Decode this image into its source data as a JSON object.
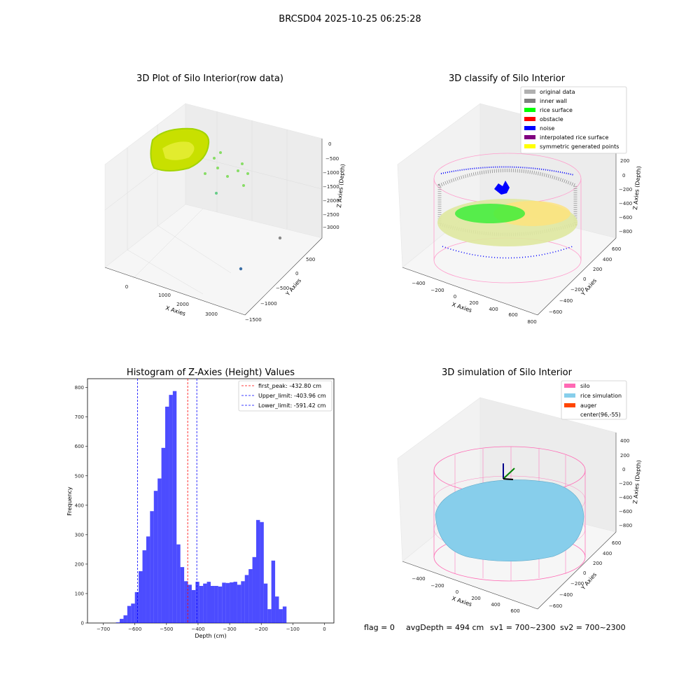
{
  "figure": {
    "suptitle": "BRCSD04 2025-10-25 06:25:28"
  },
  "panels": {
    "raw": {
      "title": "3D Plot of Silo Interior(row data)",
      "xlabel": "X Axies",
      "ylabel": "Y Axies",
      "zlabel": "Z Axies (Depth)",
      "xticks": [
        "0",
        "1000",
        "2000",
        "3000"
      ],
      "yticks": [
        "500",
        "0",
        "−500",
        "−1000",
        "−1500"
      ],
      "zticks": [
        "0",
        "−500",
        "−1000",
        "−1500",
        "−2000",
        "−2500",
        "−3000"
      ]
    },
    "classify": {
      "title": "3D classify of Silo Interior",
      "xlabel": "X Axies",
      "ylabel": "Y Axies",
      "zlabel": "Z Axies (Depth)",
      "xticks": [
        "−400",
        "−200",
        "0",
        "200",
        "400",
        "600",
        "800"
      ],
      "yticks": [
        "600",
        "400",
        "200",
        "0",
        "−200",
        "−400",
        "−600"
      ],
      "zticks": [
        "200",
        "0",
        "−200",
        "−400",
        "−600",
        "−800"
      ],
      "legend": [
        {
          "label": "original data",
          "color": "#b0b0b0"
        },
        {
          "label": "inner wall",
          "color": "#808080"
        },
        {
          "label": "rice surface",
          "color": "#00ff00"
        },
        {
          "label": "obstacle",
          "color": "#ff0000"
        },
        {
          "label": "noise",
          "color": "#0000ff"
        },
        {
          "label": "interpolated rice surface",
          "color": "#800080"
        },
        {
          "label": "symmetric generated points",
          "color": "#ffff00"
        }
      ]
    },
    "simulation": {
      "title": "3D simulation of Silo Interior",
      "xlabel": "X Axies",
      "ylabel": "Y Axies",
      "zlabel": "Z Axies (Depth)",
      "xticks": [
        "−400",
        "−200",
        "0",
        "200",
        "400",
        "600"
      ],
      "yticks": [
        "600",
        "400",
        "200",
        "0",
        "−200",
        "−400",
        "−600"
      ],
      "zticks": [
        "400",
        "200",
        "0",
        "−200",
        "−400",
        "−600",
        "−800"
      ],
      "legend": [
        {
          "label": "silo",
          "color": "#ff69b4"
        },
        {
          "label": "rice simulation",
          "color": "#87ceeb"
        },
        {
          "label": "auger",
          "color": "#ff4500"
        },
        {
          "label": "center(96,-55)",
          "color": ""
        }
      ],
      "footer": {
        "flag": "flag = 0",
        "avg": "avgDepth = 494 cm",
        "sv1": "sv1 = 700~2300",
        "sv2": "sv2 = 700~2300"
      }
    }
  },
  "chart_data": {
    "type": "bar",
    "title": "Histogram of Z-Axies (Height) Values",
    "xlabel": "Depth (cm)",
    "ylabel": "Frequency",
    "xlim": [
      -750,
      30
    ],
    "ylim": [
      0,
      830
    ],
    "xticks": [
      -700,
      -600,
      -500,
      -400,
      -300,
      -200,
      -100,
      0
    ],
    "yticks": [
      0,
      100,
      200,
      300,
      400,
      500,
      600,
      700,
      800
    ],
    "bar_color": "#0000ff",
    "bins": [
      {
        "x0": -660,
        "x1": -648,
        "value": 2
      },
      {
        "x0": -648,
        "x1": -636,
        "value": 14
      },
      {
        "x0": -636,
        "x1": -624,
        "value": 26
      },
      {
        "x0": -624,
        "x1": -612,
        "value": 58
      },
      {
        "x0": -612,
        "x1": -600,
        "value": 66
      },
      {
        "x0": -600,
        "x1": -588,
        "value": 105
      },
      {
        "x0": -588,
        "x1": -576,
        "value": 176
      },
      {
        "x0": -576,
        "x1": -564,
        "value": 247
      },
      {
        "x0": -564,
        "x1": -552,
        "value": 294
      },
      {
        "x0": -552,
        "x1": -540,
        "value": 380
      },
      {
        "x0": -540,
        "x1": -528,
        "value": 449
      },
      {
        "x0": -528,
        "x1": -516,
        "value": 491
      },
      {
        "x0": -516,
        "x1": -504,
        "value": 595
      },
      {
        "x0": -504,
        "x1": -492,
        "value": 735
      },
      {
        "x0": -492,
        "x1": -480,
        "value": 775
      },
      {
        "x0": -480,
        "x1": -468,
        "value": 788
      },
      {
        "x0": -468,
        "x1": -456,
        "value": 267
      },
      {
        "x0": -456,
        "x1": -444,
        "value": 190
      },
      {
        "x0": -444,
        "x1": -432,
        "value": 142
      },
      {
        "x0": -432,
        "x1": -420,
        "value": 130
      },
      {
        "x0": -420,
        "x1": -408,
        "value": 112
      },
      {
        "x0": -408,
        "x1": -396,
        "value": 140
      },
      {
        "x0": -396,
        "x1": -384,
        "value": 126
      },
      {
        "x0": -384,
        "x1": -372,
        "value": 134
      },
      {
        "x0": -372,
        "x1": -360,
        "value": 140
      },
      {
        "x0": -360,
        "x1": -348,
        "value": 126
      },
      {
        "x0": -348,
        "x1": -336,
        "value": 126
      },
      {
        "x0": -336,
        "x1": -324,
        "value": 124
      },
      {
        "x0": -324,
        "x1": -312,
        "value": 137
      },
      {
        "x0": -312,
        "x1": -300,
        "value": 136
      },
      {
        "x0": -300,
        "x1": -288,
        "value": 138
      },
      {
        "x0": -288,
        "x1": -276,
        "value": 140
      },
      {
        "x0": -276,
        "x1": -264,
        "value": 130
      },
      {
        "x0": -264,
        "x1": -252,
        "value": 142
      },
      {
        "x0": -252,
        "x1": -240,
        "value": 163
      },
      {
        "x0": -240,
        "x1": -228,
        "value": 183
      },
      {
        "x0": -228,
        "x1": -216,
        "value": 224
      },
      {
        "x0": -216,
        "x1": -204,
        "value": 350
      },
      {
        "x0": -204,
        "x1": -192,
        "value": 343
      },
      {
        "x0": -192,
        "x1": -180,
        "value": 134
      },
      {
        "x0": -180,
        "x1": -168,
        "value": 47
      },
      {
        "x0": -168,
        "x1": -156,
        "value": 212
      },
      {
        "x0": -156,
        "x1": -144,
        "value": 90
      },
      {
        "x0": -144,
        "x1": -132,
        "value": 47
      },
      {
        "x0": -132,
        "x1": -120,
        "value": 56
      }
    ],
    "vlines": [
      {
        "label": "first_peak: -432.80 cm",
        "x": -432.8,
        "color": "#ff0000"
      },
      {
        "label": "Upper_limit: -403.96 cm",
        "x": -403.96,
        "color": "#0000ff"
      },
      {
        "label": "Lower_limit: -591.42 cm",
        "x": -591.42,
        "color": "#0000ff"
      }
    ],
    "legend_position": "upper-right"
  }
}
